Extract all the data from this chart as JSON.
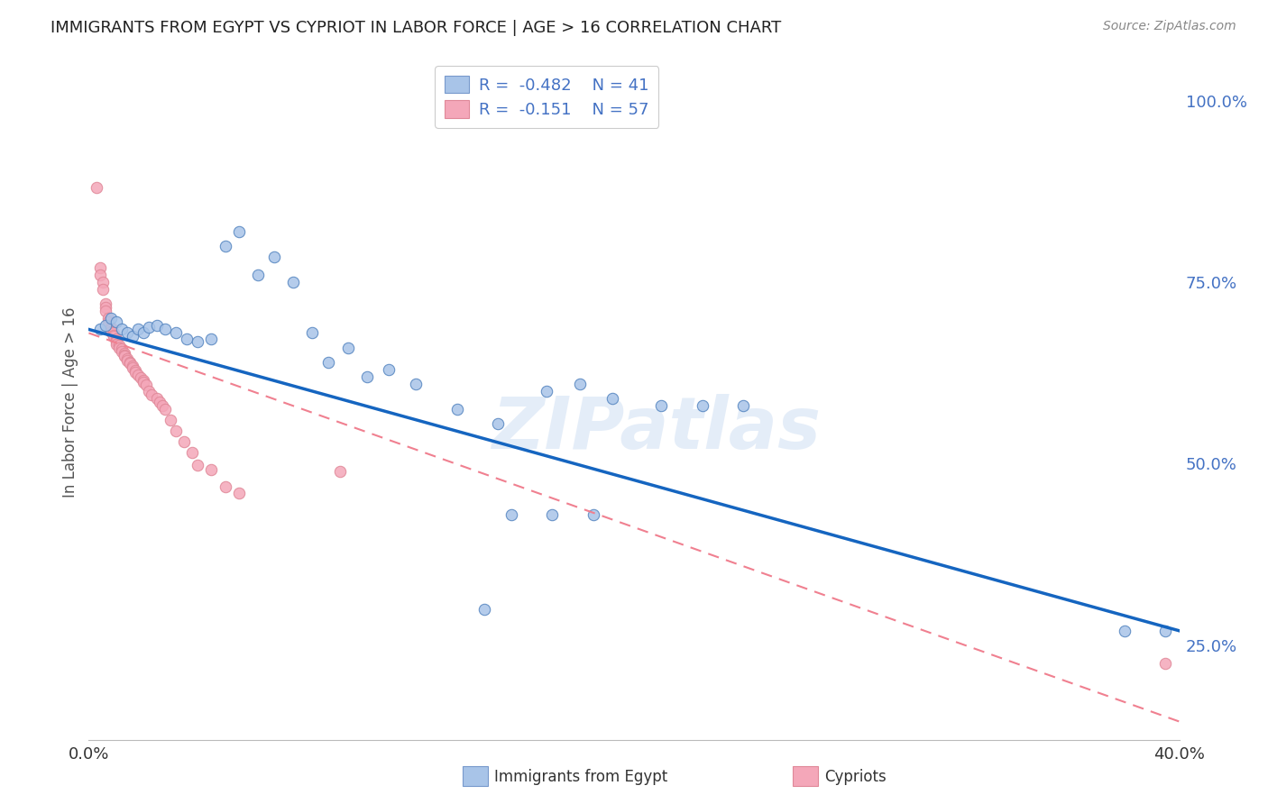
{
  "title": "IMMIGRANTS FROM EGYPT VS CYPRIOT IN LABOR FORCE | AGE > 16 CORRELATION CHART",
  "source": "Source: ZipAtlas.com",
  "ylabel": "In Labor Force | Age > 16",
  "y_ticks": [
    0.25,
    0.5,
    0.75,
    1.0
  ],
  "y_tick_labels": [
    "25.0%",
    "50.0%",
    "75.0%",
    "100.0%"
  ],
  "xlim": [
    0.0,
    0.4
  ],
  "ylim": [
    0.12,
    1.05
  ],
  "legend_egypt_R": "-0.482",
  "legend_egypt_N": "41",
  "legend_cypriot_R": "-0.151",
  "legend_cypriot_N": "57",
  "color_egypt": "#a8c4e8",
  "color_cypriot": "#f4a7b9",
  "color_egypt_line": "#1565c0",
  "color_cypriot_line": "#f08090",
  "watermark": "ZIPatlas",
  "egypt_x": [
    0.004,
    0.006,
    0.008,
    0.01,
    0.012,
    0.014,
    0.016,
    0.018,
    0.02,
    0.022,
    0.025,
    0.028,
    0.032,
    0.036,
    0.04,
    0.045,
    0.05,
    0.055,
    0.062,
    0.068,
    0.075,
    0.082,
    0.088,
    0.095,
    0.102,
    0.11,
    0.12,
    0.135,
    0.15,
    0.168,
    0.18,
    0.192,
    0.21,
    0.225,
    0.24,
    0.155,
    0.17,
    0.185,
    0.145,
    0.38,
    0.395
  ],
  "egypt_y": [
    0.685,
    0.69,
    0.7,
    0.695,
    0.685,
    0.68,
    0.675,
    0.685,
    0.68,
    0.688,
    0.69,
    0.685,
    0.68,
    0.672,
    0.668,
    0.672,
    0.8,
    0.82,
    0.76,
    0.785,
    0.75,
    0.68,
    0.64,
    0.66,
    0.62,
    0.63,
    0.61,
    0.575,
    0.555,
    0.6,
    0.61,
    0.59,
    0.58,
    0.58,
    0.58,
    0.43,
    0.43,
    0.43,
    0.3,
    0.27,
    0.27
  ],
  "cypriot_x": [
    0.003,
    0.004,
    0.004,
    0.005,
    0.005,
    0.006,
    0.006,
    0.006,
    0.007,
    0.007,
    0.007,
    0.008,
    0.008,
    0.008,
    0.009,
    0.009,
    0.009,
    0.01,
    0.01,
    0.01,
    0.01,
    0.011,
    0.011,
    0.012,
    0.012,
    0.013,
    0.013,
    0.013,
    0.014,
    0.014,
    0.015,
    0.015,
    0.016,
    0.016,
    0.017,
    0.017,
    0.018,
    0.019,
    0.02,
    0.02,
    0.021,
    0.022,
    0.023,
    0.025,
    0.026,
    0.027,
    0.028,
    0.03,
    0.032,
    0.035,
    0.038,
    0.04,
    0.045,
    0.05,
    0.055,
    0.092,
    0.395
  ],
  "cypriot_y": [
    0.88,
    0.77,
    0.76,
    0.75,
    0.74,
    0.72,
    0.715,
    0.71,
    0.7,
    0.695,
    0.69,
    0.688,
    0.685,
    0.682,
    0.68,
    0.677,
    0.675,
    0.672,
    0.67,
    0.668,
    0.665,
    0.663,
    0.66,
    0.658,
    0.655,
    0.652,
    0.65,
    0.648,
    0.645,
    0.642,
    0.64,
    0.638,
    0.635,
    0.632,
    0.628,
    0.626,
    0.622,
    0.618,
    0.615,
    0.612,
    0.608,
    0.6,
    0.595,
    0.59,
    0.585,
    0.58,
    0.575,
    0.56,
    0.545,
    0.53,
    0.515,
    0.498,
    0.492,
    0.468,
    0.46,
    0.49,
    0.225
  ],
  "egypt_line_x0": 0.0,
  "egypt_line_y0": 0.685,
  "egypt_line_x1": 0.4,
  "egypt_line_y1": 0.27,
  "cypriot_line_x0": 0.0,
  "cypriot_line_y0": 0.68,
  "cypriot_line_x1": 0.4,
  "cypriot_line_y1": 0.145
}
